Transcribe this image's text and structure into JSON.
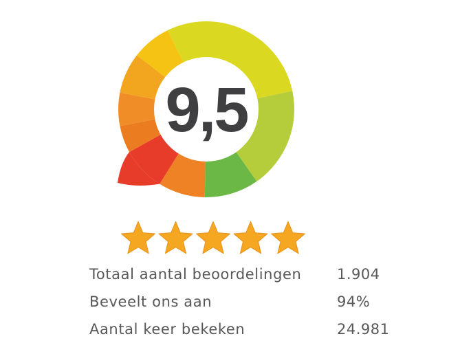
{
  "widget": {
    "score": "9,5",
    "score_color": "#3f3f41",
    "text_color": "#58585a",
    "background_color": "#ffffff",
    "stars": {
      "count": 5,
      "filled": 5,
      "fill_color": "#f6a722",
      "edge_color": "#e8961d"
    },
    "donut": {
      "center_color": "#ffffff",
      "tail_color": "#e73c2a",
      "segments": [
        {
          "name": "yellow-green",
          "from": -26,
          "to": 78,
          "color": "#dbd822"
        },
        {
          "name": "lime",
          "from": 78,
          "to": 145,
          "color": "#b5cc3b"
        },
        {
          "name": "green",
          "from": 145,
          "to": 181,
          "color": "#6cb847"
        },
        {
          "name": "orange",
          "from": 181,
          "to": 212,
          "color": "#ef8224"
        },
        {
          "name": "red",
          "from": 212,
          "to": 241,
          "color": "#e73c2a"
        },
        {
          "name": "dark-orange",
          "from": 241,
          "to": 259,
          "color": "#eb7c20"
        },
        {
          "name": "mid-orange",
          "from": 259,
          "to": 281,
          "color": "#f08d26"
        },
        {
          "name": "amber",
          "from": 281,
          "to": 308,
          "color": "#f2a51e"
        },
        {
          "name": "gold",
          "from": 308,
          "to": 334,
          "color": "#f5c313"
        }
      ]
    },
    "stats": [
      {
        "label": "Totaal aantal beoordelingen",
        "value": "1.904"
      },
      {
        "label": "Beveelt ons aan",
        "value": "94%"
      },
      {
        "label": "Aantal keer bekeken",
        "value": "24.981"
      }
    ]
  }
}
